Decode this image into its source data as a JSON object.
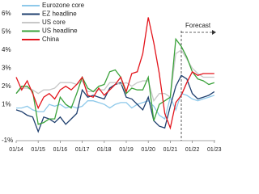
{
  "chart_data": {
    "type": "line",
    "x": [
      "01/14",
      "04/14",
      "07/14",
      "10/14",
      "01/15",
      "04/15",
      "07/15",
      "10/15",
      "01/16",
      "04/16",
      "07/16",
      "10/16",
      "01/17",
      "04/17",
      "07/17",
      "10/17",
      "01/18",
      "04/18",
      "07/18",
      "10/18",
      "01/19",
      "04/19",
      "07/19",
      "10/19",
      "01/20",
      "04/20",
      "07/20",
      "10/20",
      "01/21",
      "04/21",
      "07/21",
      "10/21",
      "01/22",
      "04/22",
      "07/22",
      "10/22",
      "01/23"
    ],
    "series": [
      {
        "name": "Eurozone core",
        "color": "#8ec9ea",
        "values": [
          0.8,
          0.8,
          0.9,
          0.7,
          0.6,
          0.6,
          1.0,
          0.9,
          1.0,
          0.8,
          0.9,
          0.8,
          0.9,
          1.2,
          1.2,
          1.1,
          1.0,
          0.8,
          1.0,
          1.1,
          1.1,
          0.8,
          1.0,
          1.1,
          1.2,
          0.9,
          0.4,
          0.2,
          1.4,
          0.7,
          1.6,
          1.5,
          1.3,
          1.2,
          1.3,
          1.4,
          1.5
        ]
      },
      {
        "name": "EZ headline",
        "color": "#1f3f6e",
        "values": [
          0.7,
          0.6,
          0.4,
          0.3,
          -0.5,
          0.3,
          0.2,
          0.0,
          0.3,
          -0.1,
          0.2,
          0.5,
          1.8,
          1.4,
          1.5,
          1.4,
          1.3,
          1.9,
          2.1,
          2.2,
          1.4,
          1.3,
          1.0,
          0.7,
          1.4,
          0.1,
          -0.2,
          -0.3,
          0.9,
          2.0,
          2.6,
          2.4,
          1.6,
          1.3,
          1.4,
          1.5,
          1.7
        ]
      },
      {
        "name": "US core",
        "color": "#c8c8c8",
        "values": [
          1.6,
          1.9,
          1.9,
          1.8,
          1.6,
          1.8,
          1.8,
          1.9,
          2.2,
          2.2,
          2.2,
          2.1,
          2.3,
          1.7,
          1.7,
          1.8,
          1.8,
          2.2,
          2.2,
          2.1,
          2.2,
          2.0,
          2.2,
          2.3,
          2.3,
          1.2,
          1.6,
          1.6,
          1.4,
          3.8,
          4.0,
          3.5,
          3.0,
          2.7,
          2.5,
          2.5,
          2.5
        ]
      },
      {
        "name": "US headline",
        "color": "#3aa23a",
        "values": [
          1.6,
          2.0,
          2.0,
          1.7,
          -0.1,
          0.0,
          0.2,
          0.2,
          1.4,
          1.0,
          0.8,
          1.6,
          2.5,
          1.9,
          1.7,
          2.0,
          2.1,
          2.8,
          2.9,
          2.5,
          1.6,
          1.9,
          1.8,
          1.8,
          2.5,
          0.1,
          1.0,
          1.2,
          1.4,
          4.6,
          4.2,
          3.6,
          2.8,
          2.4,
          2.3,
          2.1,
          2.2
        ]
      },
      {
        "name": "China",
        "color": "#e3141b",
        "values": [
          2.5,
          1.8,
          2.3,
          1.6,
          0.8,
          1.4,
          1.6,
          1.3,
          1.8,
          2.0,
          1.8,
          2.1,
          2.5,
          1.5,
          1.4,
          1.9,
          1.5,
          1.8,
          2.1,
          2.5,
          1.7,
          2.7,
          2.8,
          3.8,
          5.8,
          4.4,
          2.7,
          0.5,
          -0.3,
          1.1,
          1.5,
          2.2,
          2.8,
          2.6,
          2.7,
          2.7,
          2.7
        ]
      }
    ],
    "ylim": [
      -1,
      6
    ],
    "yticks": [
      {
        "value": 6,
        "label": "6%"
      },
      {
        "value": 5,
        "label": "5%"
      },
      {
        "value": 4,
        "label": "4%"
      },
      {
        "value": 3,
        "label": "3%"
      },
      {
        "value": 2,
        "label": "2%"
      },
      {
        "value": 1,
        "label": "1%"
      },
      {
        "value": -1,
        "label": "-1%"
      }
    ],
    "xticks": [
      "01/14",
      "01/15",
      "01/16",
      "01/17",
      "01/18",
      "01/19",
      "01/20",
      "01/21",
      "01/22",
      "01/23"
    ],
    "annotation": {
      "text": "Forecast",
      "x": "07/21"
    },
    "legend": "top-left"
  }
}
